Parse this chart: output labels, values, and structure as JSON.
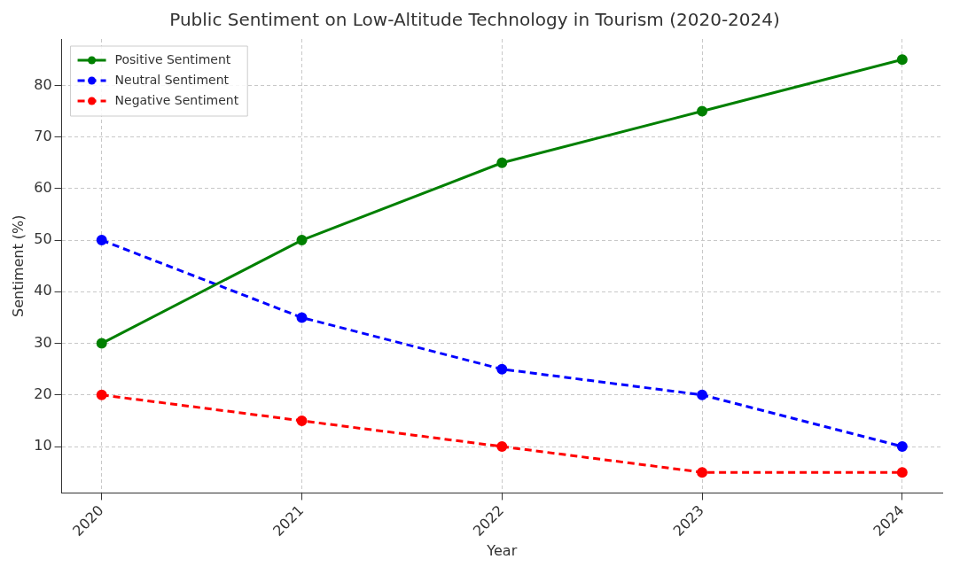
{
  "chart_data": {
    "type": "line",
    "title": "Public Sentiment on Low-Altitude Technology in Tourism (2020-2024)",
    "xlabel": "Year",
    "ylabel": "Sentiment (%)",
    "x": [
      2020,
      2021,
      2022,
      2023,
      2024
    ],
    "series": [
      {
        "name": "Positive Sentiment",
        "color": "#008000",
        "values": [
          30,
          50,
          65,
          75,
          85
        ],
        "line_style": "solid"
      },
      {
        "name": "Neutral Sentiment",
        "color": "#0000ff",
        "values": [
          50,
          35,
          25,
          20,
          10
        ],
        "line_style": "dashed"
      },
      {
        "name": "Negative Sentiment",
        "color": "#ff0000",
        "values": [
          20,
          15,
          10,
          5,
          5
        ],
        "line_style": "dashed"
      }
    ],
    "xlim": [
      2019.8,
      2024.2
    ],
    "xticks": [
      2020,
      2021,
      2022,
      2023,
      2024
    ],
    "ylim": [
      1,
      89
    ],
    "yticks": [
      10,
      20,
      30,
      40,
      50,
      60,
      70,
      80
    ],
    "grid": true,
    "legend": "top left",
    "marker": "circle"
  }
}
